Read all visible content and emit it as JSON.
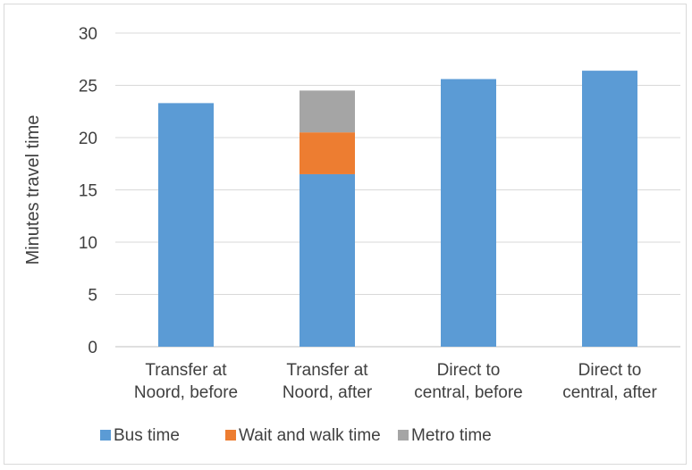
{
  "chart_data": {
    "type": "bar",
    "stacked": true,
    "title": "",
    "xlabel": "",
    "ylabel": "Minutes travel time",
    "ylim": [
      0,
      30
    ],
    "yticks": [
      0,
      5,
      10,
      15,
      20,
      25,
      30
    ],
    "grid": true,
    "legend_position": "bottom",
    "categories": [
      [
        "Transfer at",
        "Noord, before"
      ],
      [
        "Transfer at",
        "Noord, after"
      ],
      [
        "Direct to",
        "central, before"
      ],
      [
        "Direct to",
        "central, after"
      ]
    ],
    "series": [
      {
        "name": "Bus time",
        "color": "#5b9bd5",
        "values": [
          23.3,
          16.5,
          25.6,
          26.4
        ]
      },
      {
        "name": "Wait and walk time",
        "color": "#ed7d31",
        "values": [
          0,
          4.0,
          0,
          0
        ]
      },
      {
        "name": "Metro time",
        "color": "#a5a5a5",
        "values": [
          0,
          4.0,
          0,
          0
        ]
      }
    ]
  }
}
